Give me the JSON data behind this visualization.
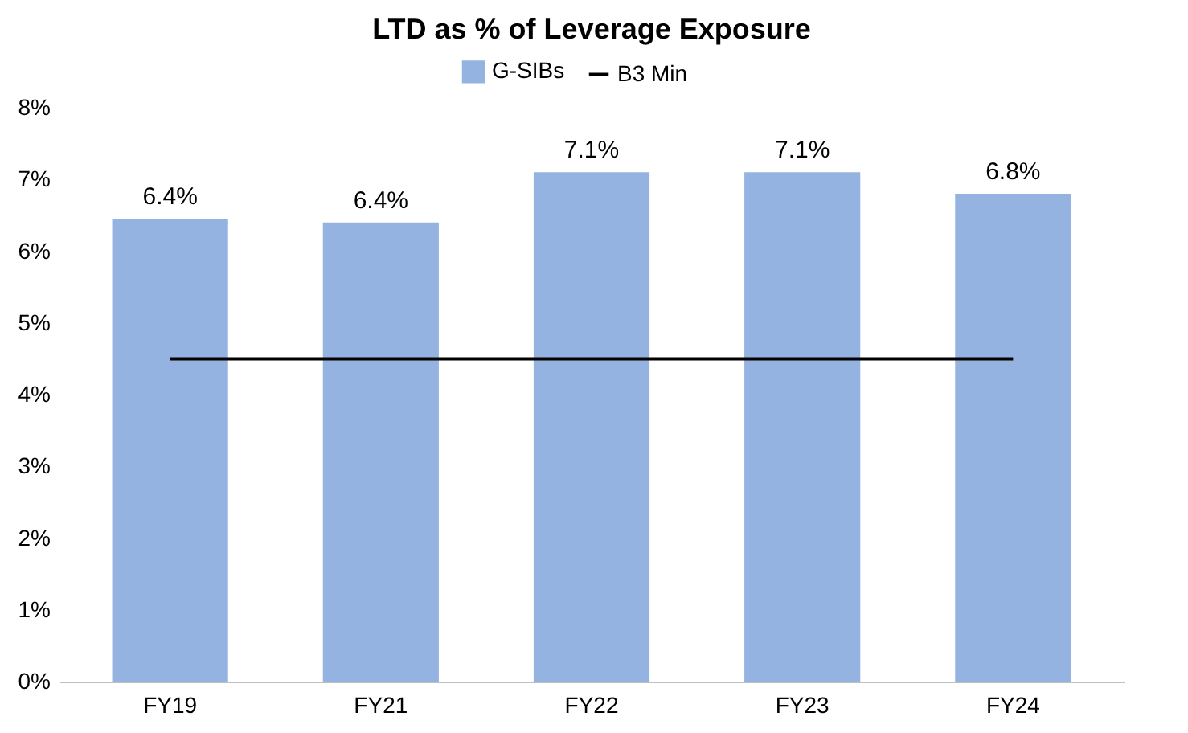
{
  "chart_data": {
    "type": "bar",
    "title": "LTD as % of Leverage Exposure",
    "categories": [
      "FY19",
      "FY21",
      "FY22",
      "FY23",
      "FY24"
    ],
    "series": [
      {
        "name": "G-SIBs",
        "color": "#95b3e0",
        "values": [
          6.45,
          6.4,
          7.1,
          7.1,
          6.8
        ],
        "value_labels": [
          "6.4%",
          "6.4%",
          "7.1%",
          "7.1%",
          "6.8%"
        ]
      },
      {
        "name": "B3 Min",
        "type": "line",
        "color": "#000000",
        "values": [
          4.5,
          4.5,
          4.5,
          4.5,
          4.5
        ]
      }
    ],
    "ylim": [
      0,
      8
    ],
    "yticks": [
      {
        "value": 0,
        "label": "0%"
      },
      {
        "value": 1,
        "label": "1%"
      },
      {
        "value": 2,
        "label": "2%"
      },
      {
        "value": 3,
        "label": "3%"
      },
      {
        "value": 4,
        "label": "4%"
      },
      {
        "value": 5,
        "label": "5%"
      },
      {
        "value": 6,
        "label": "6%"
      },
      {
        "value": 7,
        "label": "7%"
      },
      {
        "value": 8,
        "label": "8%"
      }
    ],
    "grid": false,
    "legend": "top"
  }
}
